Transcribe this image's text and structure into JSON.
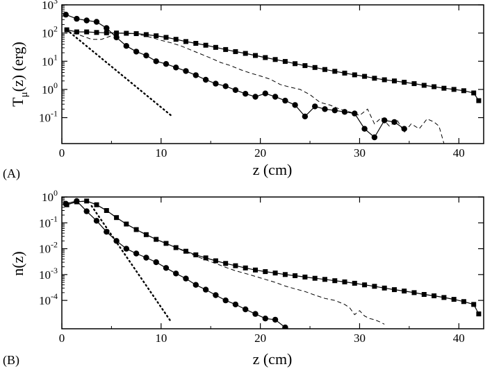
{
  "chart_data": [
    {
      "type": "line",
      "panel_label": "(A)",
      "xlabel": "z (cm)",
      "ylabel_main": "T",
      "ylabel_sub": "μ",
      "ylabel_rest": "(z) (erg)",
      "xlim": [
        0,
        42.5
      ],
      "ylim": [
        0.012,
        1000
      ],
      "yscale": "log",
      "xticks": [
        0,
        10,
        20,
        30,
        40
      ],
      "yticks": [
        {
          "value": 1000,
          "base": "10",
          "exp": "3"
        },
        {
          "value": 100,
          "base": "10",
          "exp": "2"
        },
        {
          "value": 10,
          "base": "10",
          "exp": "1"
        },
        {
          "value": 1,
          "base": "10",
          "exp": "0"
        },
        {
          "value": 0.1,
          "base": "10",
          "exp": "-1"
        }
      ],
      "grid": false,
      "series": [
        {
          "style": "line-square-markers",
          "x": [
            0.5,
            1.5,
            2.5,
            3.5,
            4.5,
            5.5,
            6.5,
            7.5,
            8.5,
            9.5,
            10.5,
            11.5,
            12.5,
            13.5,
            14.5,
            15.5,
            16.5,
            17.5,
            18.5,
            19.5,
            20.5,
            21.5,
            22.5,
            23.5,
            24.5,
            25.5,
            26.5,
            27.5,
            28.5,
            29.5,
            30.5,
            31.5,
            32.5,
            33.5,
            34.5,
            35.5,
            36.5,
            37.5,
            38.5,
            39.5,
            40.5,
            41.5,
            42
          ],
          "y": [
            130,
            110,
            110,
            105,
            102,
            100,
            98,
            95,
            88,
            80,
            70,
            60,
            50,
            43,
            37,
            31,
            26,
            22,
            19,
            16,
            13.5,
            11.5,
            9.8,
            8.2,
            7,
            6,
            5.1,
            4.4,
            3.8,
            3.3,
            2.9,
            2.5,
            2.2,
            2,
            1.8,
            1.6,
            1.4,
            1.25,
            1.1,
            1,
            0.9,
            0.75,
            0.4
          ]
        },
        {
          "style": "line-circle-markers",
          "x": [
            0.4,
            1.5,
            2.5,
            3.5,
            4.5,
            5.5,
            6.5,
            7.5,
            8.5,
            9.5,
            10.5,
            11.5,
            12.5,
            13.5,
            14.5,
            15.5,
            16.5,
            17.5,
            18.5,
            19.5,
            20.5,
            21.5,
            22.5,
            23.5,
            24.5,
            25.5,
            26.5,
            27.5,
            28.5,
            29.5,
            30.5,
            31.5,
            32.5,
            33.5,
            34.5
          ],
          "y": [
            450,
            320,
            280,
            250,
            150,
            70,
            35,
            22,
            16,
            10,
            8,
            6,
            4.5,
            3.2,
            2.2,
            1.6,
            1.3,
            0.95,
            0.7,
            0.55,
            0.72,
            0.55,
            0.4,
            0.28,
            0.11,
            0.25,
            0.2,
            0.18,
            0.16,
            0.14,
            0.04,
            0.02,
            0.08,
            0.07,
            0.04
          ]
        },
        {
          "style": "dashed",
          "x": [
            0.5,
            2,
            3,
            4,
            5,
            6,
            7,
            8,
            9,
            10,
            11,
            12,
            13,
            14,
            15,
            16,
            17,
            18,
            19,
            20,
            21,
            22,
            23,
            24,
            25,
            26,
            27,
            28,
            29,
            30,
            30.8,
            31.5,
            32.2,
            33,
            33.8,
            34.5,
            35.2,
            36,
            36.8,
            37.5,
            38,
            38.5
          ],
          "y": [
            120,
            80,
            60,
            60,
            80,
            100,
            95,
            85,
            70,
            55,
            45,
            35,
            25,
            18,
            13,
            9,
            7,
            5,
            3.8,
            3,
            2.3,
            1.5,
            1.2,
            1,
            0.65,
            0.35,
            0.28,
            0.2,
            0.16,
            0.12,
            0.2,
            0.06,
            0.1,
            0.05,
            0.08,
            0.03,
            0.06,
            0.04,
            0.09,
            0.07,
            0.05,
            0.012
          ]
        },
        {
          "style": "dotted",
          "x": [
            0.5,
            11
          ],
          "y": [
            130,
            0.12
          ]
        }
      ]
    },
    {
      "type": "line",
      "panel_label": "(B)",
      "xlabel": "z (cm)",
      "ylabel": "n(z)",
      "xlim": [
        0,
        42.5
      ],
      "ylim": [
        8e-06,
        1.0
      ],
      "yscale": "log",
      "xticks": [
        0,
        10,
        20,
        30,
        40
      ],
      "yticks": [
        {
          "value": 1,
          "base": "10",
          "exp": "0"
        },
        {
          "value": 0.1,
          "base": "10",
          "exp": "-1"
        },
        {
          "value": 0.01,
          "base": "10",
          "exp": "-2"
        },
        {
          "value": 0.001,
          "base": "10",
          "exp": "-3"
        },
        {
          "value": 0.0001,
          "base": "10",
          "exp": "-4"
        }
      ],
      "grid": false,
      "series": [
        {
          "style": "line-square-markers",
          "x": [
            0.5,
            1.5,
            2.5,
            3.5,
            4.5,
            5.5,
            6.5,
            7.5,
            8.5,
            9.5,
            10.5,
            11.5,
            12.5,
            13.5,
            14.5,
            15.5,
            16.5,
            17.5,
            18.5,
            19.5,
            20.5,
            21.5,
            22.5,
            23.5,
            24.5,
            25.5,
            26.5,
            27.5,
            28.5,
            29.5,
            30.5,
            31.5,
            32.5,
            33.5,
            34.5,
            35.5,
            36.5,
            37.5,
            38.5,
            39.5,
            40.5,
            41.5,
            42
          ],
          "y": [
            0.5,
            0.65,
            0.7,
            0.5,
            0.3,
            0.16,
            0.09,
            0.055,
            0.035,
            0.023,
            0.016,
            0.011,
            0.008,
            0.0058,
            0.0044,
            0.0034,
            0.0027,
            0.0022,
            0.0018,
            0.0015,
            0.0013,
            0.00115,
            0.001,
            0.0009,
            0.0008,
            0.00072,
            0.00065,
            0.00058,
            0.00052,
            0.00046,
            0.0004,
            0.00035,
            0.0003,
            0.00026,
            0.00023,
            0.0002,
            0.00017,
            0.00015,
            0.00013,
            0.00011,
            9e-05,
            7e-05,
            3e-05
          ]
        },
        {
          "style": "line-circle-markers",
          "x": [
            0.4,
            1.5,
            2.5,
            3.5,
            4.5,
            5.5,
            6.5,
            7.5,
            8.5,
            9.5,
            10.5,
            11.5,
            12.5,
            13.5,
            14.5,
            15.5,
            16.5,
            17.5,
            18.5,
            19.5,
            20.5,
            21.5,
            22.5
          ],
          "y": [
            0.55,
            0.7,
            0.28,
            0.12,
            0.045,
            0.02,
            0.01,
            0.0065,
            0.0045,
            0.003,
            0.0018,
            0.0011,
            0.0007,
            0.0004,
            0.00026,
            0.00016,
            0.0001,
            7e-05,
            4.5e-05,
            3e-05,
            2e-05,
            1.8e-05,
            9e-06
          ]
        },
        {
          "style": "dashed",
          "x": [
            0.5,
            1.5,
            2.5,
            3.5,
            4.5,
            5.5,
            6.5,
            7.5,
            8.5,
            9.5,
            10.5,
            11.5,
            12.5,
            13.5,
            14.5,
            15.5,
            16.5,
            17.5,
            18.5,
            19.5,
            20.5,
            21.5,
            22.5,
            23.5,
            24.5,
            25.5,
            26.5,
            27.5,
            28.5,
            29,
            29.5,
            30,
            30.5,
            31,
            31.5,
            32,
            32.5
          ],
          "y": [
            0.5,
            0.65,
            0.7,
            0.5,
            0.3,
            0.16,
            0.09,
            0.055,
            0.035,
            0.023,
            0.016,
            0.011,
            0.0075,
            0.0052,
            0.0037,
            0.0027,
            0.0019,
            0.0014,
            0.0011,
            0.00085,
            0.00065,
            0.0005,
            0.00036,
            0.00028,
            0.00022,
            0.00016,
            0.00012,
            0.0001,
            7e-05,
            5.2e-05,
            2.8e-05,
            4e-05,
            2.5e-05,
            2e-05,
            1.8e-05,
            1.5e-05,
            1.2e-05
          ]
        },
        {
          "style": "dotted",
          "x": [
            3,
            11
          ],
          "y": [
            0.45,
            1.5e-05
          ]
        }
      ]
    }
  ]
}
